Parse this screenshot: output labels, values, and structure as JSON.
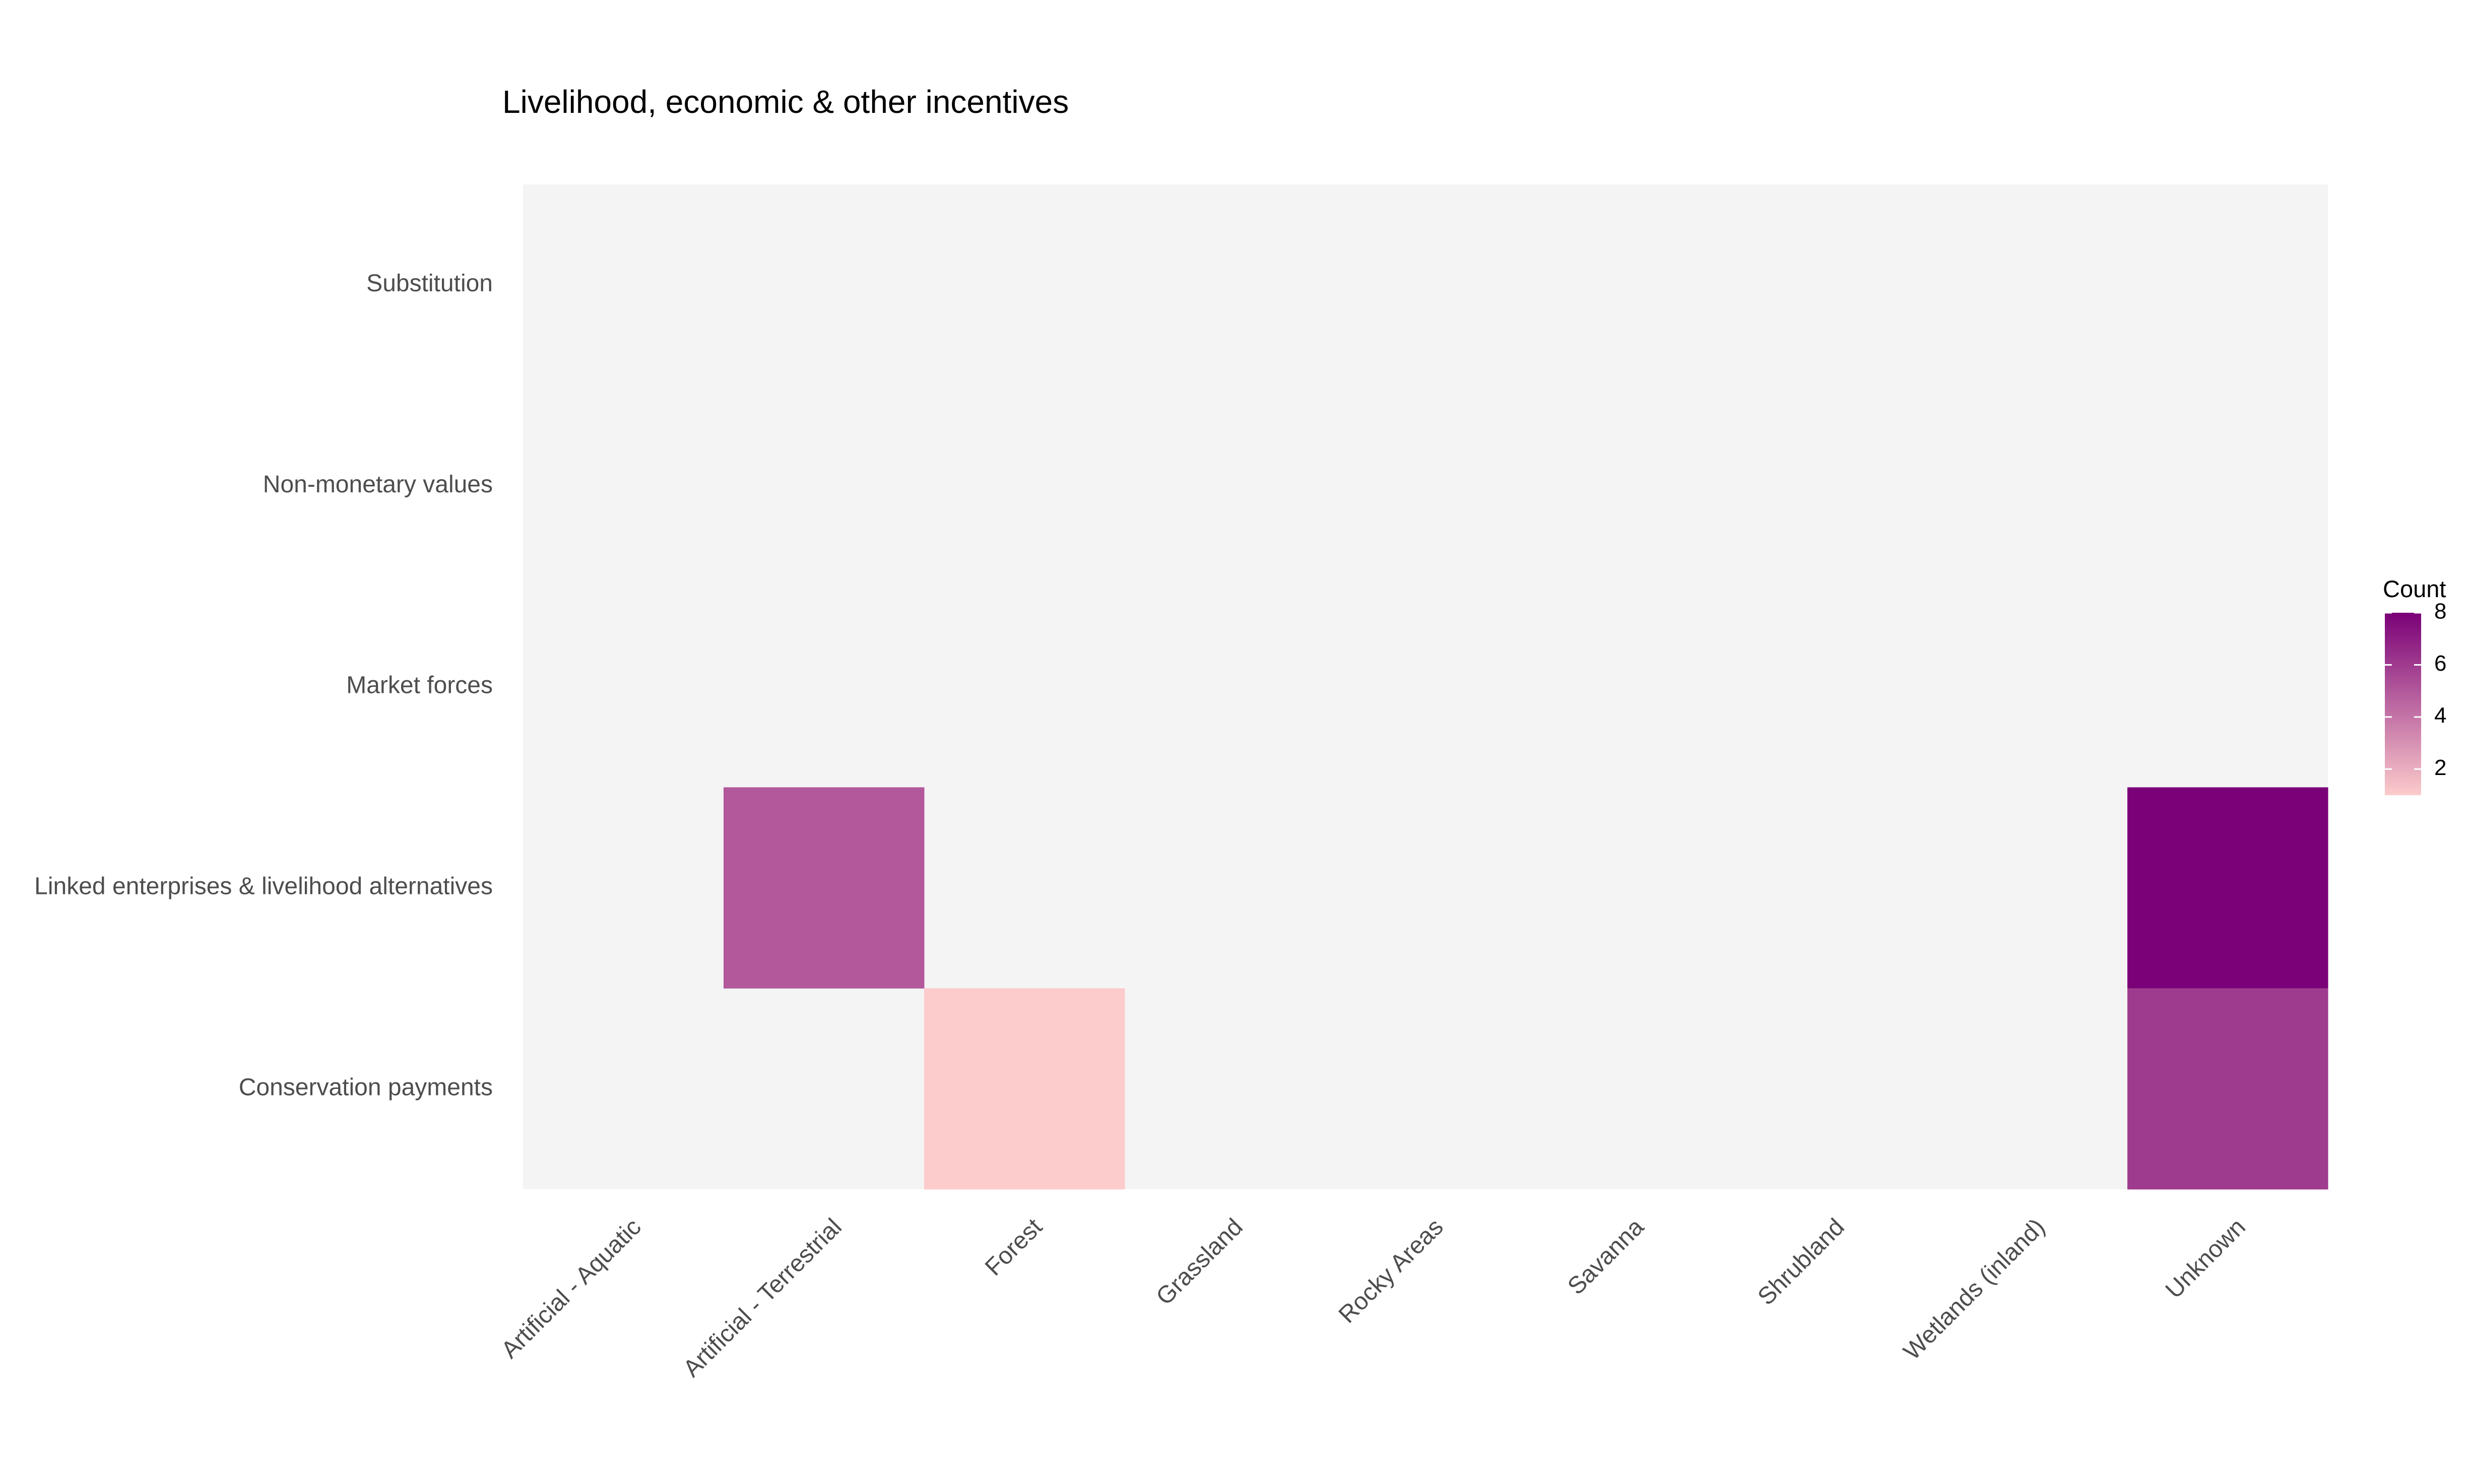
{
  "chart_data": {
    "type": "heatmap",
    "title": "Livelihood, economic & other incentives",
    "xlabel": "",
    "ylabel": "",
    "x_categories": [
      "Artificial - Aquatic",
      "Artificial - Terrestrial",
      "Forest",
      "Grassland",
      "Rocky Areas",
      "Savanna",
      "Shrubland",
      "Wetlands (inland)",
      "Unknown"
    ],
    "y_categories": [
      "Substitution",
      "Non-monetary values",
      "Market forces",
      "Linked enterprises & livelihood alternatives",
      "Conservation payments"
    ],
    "cells": [
      {
        "x": "Artificial - Terrestrial",
        "y": "Linked enterprises & livelihood alternatives",
        "value": 5
      },
      {
        "x": "Unknown",
        "y": "Linked enterprises & livelihood alternatives",
        "value": 8
      },
      {
        "x": "Forest",
        "y": "Conservation payments",
        "value": 1
      },
      {
        "x": "Unknown",
        "y": "Conservation payments",
        "value": 6
      }
    ],
    "legend": {
      "title": "Count",
      "min": 1,
      "max": 8,
      "ticks": [
        2,
        4,
        6,
        8
      ],
      "low_color": "#fccbcb",
      "high_color": "#7a0177",
      "placement": "right"
    },
    "background_color": "#f4f4f4",
    "grid": false
  }
}
